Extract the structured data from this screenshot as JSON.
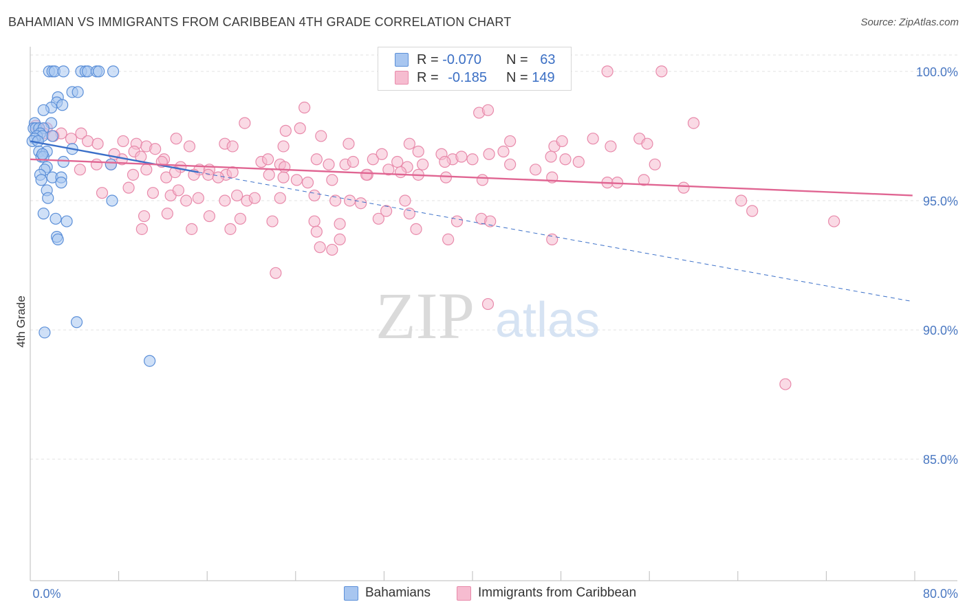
{
  "title": "BAHAMIAN VS IMMIGRANTS FROM CARIBBEAN 4TH GRADE CORRELATION CHART",
  "source": "Source: ZipAtlas.com",
  "watermark": {
    "zip": "ZIP",
    "atlas": "atlas"
  },
  "colors": {
    "blue_fill": "#a8c6f0",
    "blue_stroke": "#5b8fd8",
    "blue_line": "#3a6fc8",
    "pink_fill": "#f6bcd0",
    "pink_stroke": "#e889aa",
    "pink_line": "#e06592",
    "tick_text": "#4a78c2",
    "grid": "#e2e2e2"
  },
  "legend_top": {
    "rows": [
      {
        "series": "Bahamians",
        "r_label": "R =",
        "r_value": "-0.070",
        "n_label": "N =",
        "n_value": "63"
      },
      {
        "series": "Immigrants from Caribbean",
        "r_label": "R =",
        "r_value": "-0.185",
        "n_label": "N =",
        "n_value": "149"
      }
    ]
  },
  "legend_bottom": {
    "items": [
      "Bahamians",
      "Immigrants from Caribbean"
    ]
  },
  "chart_data": {
    "type": "scatter",
    "title": "BAHAMIAN VS IMMIGRANTS FROM CARIBBEAN 4TH GRADE CORRELATION CHART",
    "xlabel": "",
    "ylabel": "4th Grade",
    "xlim": [
      0,
      80
    ],
    "ylim": [
      80.3,
      100.9
    ],
    "x_tick_labels": [
      "0.0%",
      "80.0%"
    ],
    "y_ticks": [
      85,
      90,
      95,
      100
    ],
    "y_tick_labels": [
      "85.0%",
      "90.0%",
      "95.0%",
      "100.0%"
    ],
    "grid": true,
    "legend_position": "top-center",
    "series": [
      {
        "name": "Bahamians",
        "r": -0.07,
        "n": 63,
        "trend": {
          "solid": [
            [
              0,
              97.3
            ],
            [
              15.2,
              96.1
            ]
          ],
          "dashed": [
            [
              15.2,
              96.1
            ],
            [
              79.8,
              91.1
            ]
          ]
        },
        "points": [
          [
            1.7,
            100.0
          ],
          [
            2.0,
            100.0
          ],
          [
            2.2,
            100.0
          ],
          [
            3.0,
            100.0
          ],
          [
            4.6,
            100.0
          ],
          [
            5.0,
            100.0
          ],
          [
            5.2,
            100.0
          ],
          [
            6.0,
            100.0
          ],
          [
            6.2,
            100.0
          ],
          [
            7.5,
            100.0
          ],
          [
            3.8,
            99.2
          ],
          [
            4.3,
            99.2
          ],
          [
            2.5,
            99.0
          ],
          [
            2.4,
            98.8
          ],
          [
            2.9,
            98.7
          ],
          [
            1.9,
            98.6
          ],
          [
            1.2,
            98.5
          ],
          [
            0.4,
            98.0
          ],
          [
            1.9,
            98.0
          ],
          [
            0.3,
            97.8
          ],
          [
            0.5,
            97.8
          ],
          [
            0.8,
            97.8
          ],
          [
            1.2,
            97.8
          ],
          [
            0.9,
            97.6
          ],
          [
            0.6,
            97.5
          ],
          [
            1.1,
            97.5
          ],
          [
            2.0,
            97.5
          ],
          [
            0.4,
            97.4
          ],
          [
            0.2,
            97.3
          ],
          [
            0.7,
            97.3
          ],
          [
            3.8,
            97.0
          ],
          [
            0.8,
            96.9
          ],
          [
            1.5,
            96.9
          ],
          [
            1.0,
            96.7
          ],
          [
            1.2,
            96.7
          ],
          [
            1.1,
            96.8
          ],
          [
            3.0,
            96.5
          ],
          [
            7.3,
            96.4
          ],
          [
            1.5,
            96.3
          ],
          [
            1.3,
            96.2
          ],
          [
            0.9,
            96.0
          ],
          [
            2.0,
            95.9
          ],
          [
            2.8,
            95.9
          ],
          [
            1.0,
            95.8
          ],
          [
            2.8,
            95.7
          ],
          [
            1.5,
            95.4
          ],
          [
            1.6,
            95.1
          ],
          [
            7.4,
            95.0
          ],
          [
            1.2,
            94.5
          ],
          [
            2.3,
            94.3
          ],
          [
            3.3,
            94.2
          ],
          [
            2.4,
            93.6
          ],
          [
            2.5,
            93.5
          ],
          [
            4.2,
            90.3
          ],
          [
            1.3,
            89.9
          ],
          [
            10.8,
            88.8
          ]
        ]
      },
      {
        "name": "Immigrants from Caribbean",
        "r": -0.185,
        "n": 149,
        "trend": {
          "solid": [
            [
              0,
              96.6
            ],
            [
              79.8,
              95.2
            ]
          ]
        },
        "points": [
          [
            52.2,
            100.0
          ],
          [
            57.1,
            100.0
          ],
          [
            24.8,
            98.6
          ],
          [
            40.6,
            98.4
          ],
          [
            41.4,
            98.5
          ],
          [
            60.0,
            98.0
          ],
          [
            19.4,
            98.0
          ],
          [
            24.4,
            97.8
          ],
          [
            23.1,
            97.7
          ],
          [
            26.3,
            97.5
          ],
          [
            0.8,
            97.8
          ],
          [
            1.5,
            97.8
          ],
          [
            4.6,
            97.6
          ],
          [
            2.8,
            97.6
          ],
          [
            0.5,
            97.9
          ],
          [
            1.2,
            97.6
          ],
          [
            2.1,
            97.5
          ],
          [
            3.7,
            97.4
          ],
          [
            5.2,
            97.3
          ],
          [
            6.1,
            97.2
          ],
          [
            8.4,
            97.3
          ],
          [
            9.6,
            97.2
          ],
          [
            10.5,
            97.1
          ],
          [
            11.3,
            97.0
          ],
          [
            13.2,
            97.4
          ],
          [
            14.4,
            97.1
          ],
          [
            17.6,
            97.2
          ],
          [
            18.3,
            97.1
          ],
          [
            22.9,
            97.1
          ],
          [
            28.8,
            97.2
          ],
          [
            34.3,
            97.2
          ],
          [
            35.1,
            96.9
          ],
          [
            37.2,
            96.8
          ],
          [
            38.2,
            96.6
          ],
          [
            42.8,
            96.9
          ],
          [
            43.4,
            97.3
          ],
          [
            47.4,
            97.1
          ],
          [
            48.1,
            97.3
          ],
          [
            50.9,
            97.4
          ],
          [
            52.5,
            97.1
          ],
          [
            55.1,
            97.4
          ],
          [
            55.8,
            97.2
          ],
          [
            8.3,
            96.6
          ],
          [
            9.4,
            96.9
          ],
          [
            10.0,
            96.7
          ],
          [
            12.1,
            96.6
          ],
          [
            13.6,
            96.3
          ],
          [
            15.3,
            96.2
          ],
          [
            16.2,
            96.2
          ],
          [
            17.7,
            96.0
          ],
          [
            18.3,
            96.1
          ],
          [
            20.9,
            96.5
          ],
          [
            21.5,
            96.6
          ],
          [
            22.6,
            96.4
          ],
          [
            23.0,
            96.3
          ],
          [
            25.9,
            96.6
          ],
          [
            27.0,
            96.4
          ],
          [
            28.5,
            96.4
          ],
          [
            29.2,
            96.5
          ],
          [
            31.0,
            96.6
          ],
          [
            32.4,
            96.2
          ],
          [
            33.2,
            96.5
          ],
          [
            34.1,
            96.3
          ],
          [
            35.5,
            96.4
          ],
          [
            37.5,
            96.5
          ],
          [
            39.0,
            96.7
          ],
          [
            40.0,
            96.6
          ],
          [
            41.5,
            96.8
          ],
          [
            43.4,
            96.4
          ],
          [
            47.1,
            96.7
          ],
          [
            48.4,
            96.6
          ],
          [
            49.6,
            96.5
          ],
          [
            9.3,
            96.0
          ],
          [
            10.5,
            96.2
          ],
          [
            12.3,
            95.9
          ],
          [
            13.1,
            96.1
          ],
          [
            14.8,
            96.0
          ],
          [
            16.1,
            96.0
          ],
          [
            17.0,
            95.9
          ],
          [
            21.6,
            96.0
          ],
          [
            22.9,
            95.9
          ],
          [
            24.1,
            95.8
          ],
          [
            25.1,
            95.7
          ],
          [
            27.3,
            95.8
          ],
          [
            30.5,
            96.0
          ],
          [
            33.5,
            96.1
          ],
          [
            35.1,
            96.0
          ],
          [
            37.6,
            95.9
          ],
          [
            40.9,
            95.8
          ],
          [
            47.2,
            95.9
          ],
          [
            52.2,
            95.7
          ],
          [
            53.1,
            95.7
          ],
          [
            55.5,
            95.8
          ],
          [
            59.1,
            95.5
          ],
          [
            6.5,
            95.3
          ],
          [
            8.9,
            95.5
          ],
          [
            11.1,
            95.3
          ],
          [
            12.7,
            95.2
          ],
          [
            13.4,
            95.4
          ],
          [
            14.1,
            95.0
          ],
          [
            15.2,
            95.1
          ],
          [
            17.6,
            95.0
          ],
          [
            18.7,
            95.2
          ],
          [
            19.6,
            95.0
          ],
          [
            20.3,
            95.1
          ],
          [
            22.6,
            95.1
          ],
          [
            25.7,
            95.2
          ],
          [
            27.6,
            95.0
          ],
          [
            28.9,
            95.0
          ],
          [
            29.9,
            94.9
          ],
          [
            32.2,
            94.6
          ],
          [
            33.9,
            95.0
          ],
          [
            64.3,
            95.0
          ],
          [
            65.3,
            94.6
          ],
          [
            10.3,
            94.4
          ],
          [
            12.4,
            94.5
          ],
          [
            16.2,
            94.4
          ],
          [
            19.0,
            94.3
          ],
          [
            21.9,
            94.2
          ],
          [
            25.7,
            94.2
          ],
          [
            28.0,
            94.1
          ],
          [
            31.5,
            94.3
          ],
          [
            34.3,
            94.5
          ],
          [
            38.6,
            94.2
          ],
          [
            40.8,
            94.3
          ],
          [
            41.6,
            94.2
          ],
          [
            72.7,
            94.2
          ],
          [
            10.1,
            93.9
          ],
          [
            14.6,
            93.9
          ],
          [
            18.1,
            93.9
          ],
          [
            25.9,
            93.8
          ],
          [
            28.0,
            93.5
          ],
          [
            34.9,
            93.9
          ],
          [
            37.8,
            93.5
          ],
          [
            47.2,
            93.5
          ],
          [
            26.2,
            93.2
          ],
          [
            27.3,
            93.1
          ],
          [
            22.2,
            92.2
          ],
          [
            41.4,
            91.0
          ],
          [
            68.3,
            87.9
          ],
          [
            7.6,
            96.8
          ],
          [
            11.9,
            96.5
          ],
          [
            30.4,
            96.0
          ],
          [
            31.8,
            96.8
          ],
          [
            4.5,
            96.2
          ],
          [
            6.0,
            96.4
          ],
          [
            7.3,
            96.4
          ],
          [
            45.7,
            96.2
          ],
          [
            56.5,
            96.4
          ]
        ]
      }
    ]
  }
}
